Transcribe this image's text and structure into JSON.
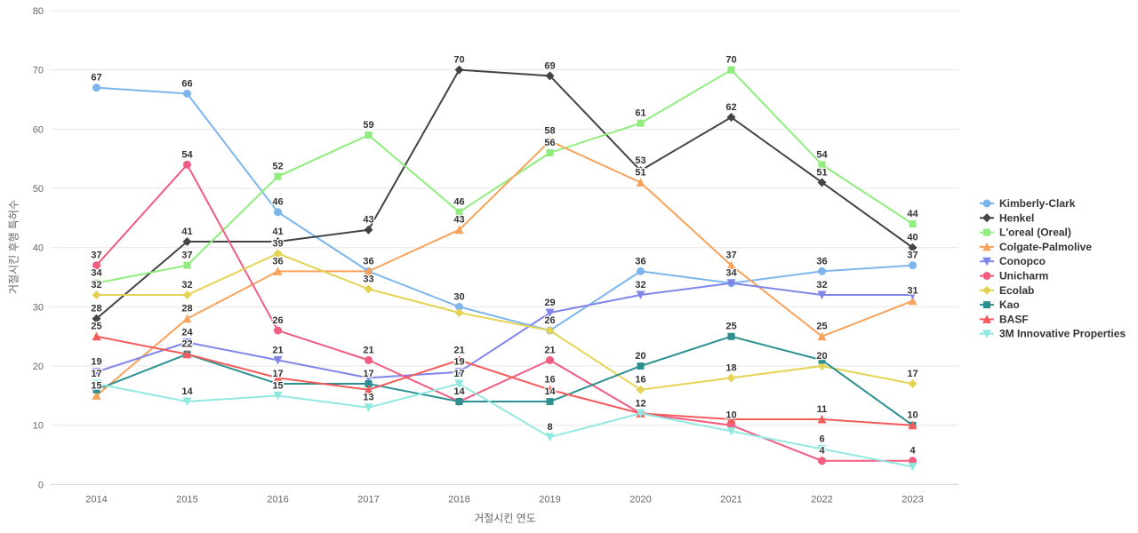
{
  "chart": {
    "y_axis_title": "거절시킨 후행 특허수",
    "x_axis_title": "거절시킨 연도",
    "y_ticks": [
      0,
      10,
      20,
      30,
      40,
      50,
      60,
      70,
      80
    ],
    "background_color": "#ffffff",
    "grid_color": "#e6e6e6",
    "axis_line_color": "#ccd6eb",
    "tick_label_color": "#666666",
    "axis_title_color": "#666666",
    "data_label_color": "#333333",
    "legend_text_color": "#333333"
  },
  "chart_data": {
    "type": "line",
    "x": [
      2014,
      2015,
      2016,
      2017,
      2018,
      2019,
      2020,
      2021,
      2022,
      2023
    ],
    "xlabel": "거절시킨 연도",
    "ylabel": "거절시킨 후행 특허수",
    "ylim": [
      0,
      80
    ],
    "grid": true,
    "legend_position": "middle-right",
    "series": [
      {
        "name": "Kimberly-Clark",
        "color": "#7cb5ec",
        "marker": "circle",
        "values": [
          67,
          66,
          46,
          36,
          30,
          26,
          36,
          34,
          36,
          37
        ],
        "hidden_labels": [
          2019
        ]
      },
      {
        "name": "Henkel",
        "color": "#434348",
        "marker": "diamond",
        "values": [
          28,
          41,
          41,
          43,
          70,
          69,
          53,
          62,
          51,
          40
        ],
        "hidden_labels": []
      },
      {
        "name": "L'oreal (Oreal)",
        "color": "#90ed7d",
        "marker": "square",
        "values": [
          34,
          37,
          52,
          59,
          46,
          56,
          61,
          70,
          54,
          44
        ],
        "hidden_labels": []
      },
      {
        "name": "Colgate-Palmolive",
        "color": "#f7a35c",
        "marker": "triangle",
        "values": [
          15,
          28,
          36,
          36,
          43,
          58,
          51,
          37,
          25,
          31
        ],
        "hidden_labels": [
          2017
        ]
      },
      {
        "name": "Conopco",
        "color": "#8085e9",
        "marker": "triangle-down",
        "values": [
          19,
          24,
          21,
          18,
          19,
          29,
          32,
          34,
          32,
          32
        ],
        "hidden_labels": [
          2017,
          2021,
          2023
        ]
      },
      {
        "name": "Unicharm",
        "color": "#f15c80",
        "marker": "circle",
        "values": [
          37,
          54,
          26,
          21,
          14,
          21,
          12,
          10,
          4,
          4
        ],
        "hidden_labels": [
          2018,
          2020
        ]
      },
      {
        "name": "Ecolab",
        "color": "#e4d354",
        "marker": "diamond",
        "values": [
          32,
          32,
          39,
          33,
          29,
          26,
          16,
          18,
          20,
          17
        ],
        "hidden_labels": [
          2018
        ]
      },
      {
        "name": "Kao",
        "color": "#2b908f",
        "marker": "square",
        "values": [
          16,
          22,
          17,
          17,
          14,
          14,
          20,
          25,
          21,
          10
        ],
        "hidden_labels": [
          2014,
          2022
        ]
      },
      {
        "name": "BASF",
        "color": "#f45b5b",
        "marker": "triangle",
        "values": [
          25,
          22,
          18,
          16,
          21,
          16,
          12,
          11,
          11,
          10
        ],
        "hidden_labels": [
          2015,
          2016,
          2017,
          2020,
          2021,
          2023
        ]
      },
      {
        "name": "3M Innovative Properties",
        "color": "#91e8e1",
        "marker": "triangle-down",
        "values": [
          17,
          14,
          15,
          13,
          17,
          8,
          12,
          9,
          6,
          3
        ],
        "hidden_labels": [
          2021,
          2023
        ]
      }
    ]
  }
}
